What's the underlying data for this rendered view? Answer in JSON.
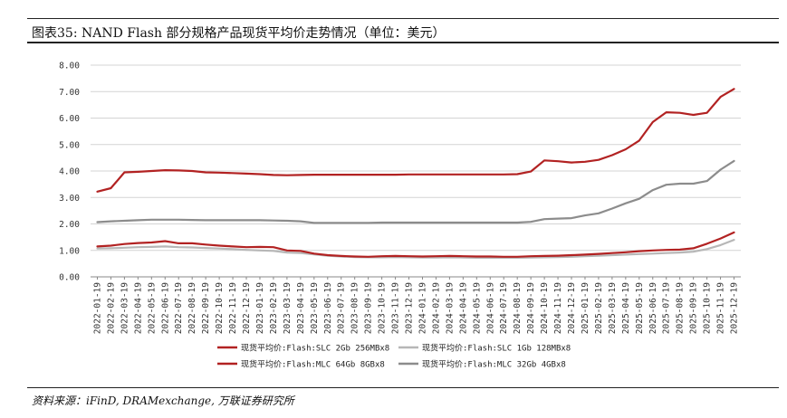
{
  "figure": {
    "title": "图表35: NAND Flash 部分规格产品现货平均价走势情况（单位：美元）",
    "source": "资料来源：iFinD, DRAMexchange, 万联证券研究所"
  },
  "chart_data": {
    "type": "line",
    "title": "",
    "xlabel": "",
    "ylabel": "",
    "ylim": [
      0,
      8
    ],
    "yticks": [
      "0.00",
      "1.00",
      "2.00",
      "3.00",
      "4.00",
      "5.00",
      "6.00",
      "7.00",
      "8.00"
    ],
    "grid": true,
    "legend_position": "bottom",
    "x": [
      "2022-01-19",
      "2022-02-19",
      "2022-03-19",
      "2022-04-19",
      "2022-05-19",
      "2022-06-19",
      "2022-07-19",
      "2022-08-19",
      "2022-09-19",
      "2022-10-19",
      "2022-11-19",
      "2022-12-19",
      "2023-01-19",
      "2023-02-19",
      "2023-03-19",
      "2023-04-19",
      "2023-05-19",
      "2023-06-19",
      "2023-07-19",
      "2023-08-19",
      "2023-09-19",
      "2023-10-19",
      "2023-11-19",
      "2023-12-19",
      "2024-01-19",
      "2024-02-19",
      "2024-03-19",
      "2024-04-19",
      "2024-05-19",
      "2024-06-19",
      "2024-07-19",
      "2024-08-19",
      "2024-09-19",
      "2024-10-19",
      "2024-11-19",
      "2024-12-19",
      "2025-01-19",
      "2025-02-19",
      "2025-03-19",
      "2025-04-19",
      "2025-05-19",
      "2025-06-19",
      "2025-07-19",
      "2025-08-19",
      "2025-09-19",
      "2025-10-19",
      "2025-11-19",
      "2025-12-19"
    ],
    "series": [
      {
        "name": "现货平均价:Flash:SLC 2Gb 256MBx8",
        "color": "#b22222",
        "width": 2.2,
        "values": [
          1.15,
          1.18,
          1.24,
          1.28,
          1.3,
          1.35,
          1.27,
          1.27,
          1.22,
          1.18,
          1.15,
          1.12,
          1.13,
          1.12,
          1.0,
          0.98,
          0.88,
          0.82,
          0.79,
          0.77,
          0.76,
          0.78,
          0.79,
          0.78,
          0.77,
          0.78,
          0.79,
          0.78,
          0.77,
          0.77,
          0.76,
          0.76,
          0.78,
          0.79,
          0.8,
          0.82,
          0.84,
          0.87,
          0.9,
          0.93,
          0.97,
          1.0,
          1.02,
          1.03,
          1.08,
          1.25,
          1.45,
          1.68
        ]
      },
      {
        "name": "现货平均价:Flash:SLC 1Gb 128MBx8",
        "color": "#b7b7b7",
        "width": 2.2,
        "values": [
          1.07,
          1.08,
          1.1,
          1.12,
          1.13,
          1.15,
          1.12,
          1.11,
          1.09,
          1.07,
          1.05,
          1.02,
          1.0,
          0.98,
          0.92,
          0.9,
          0.85,
          0.8,
          0.77,
          0.75,
          0.74,
          0.74,
          0.75,
          0.74,
          0.73,
          0.73,
          0.74,
          0.73,
          0.72,
          0.72,
          0.72,
          0.72,
          0.73,
          0.74,
          0.75,
          0.76,
          0.78,
          0.8,
          0.82,
          0.84,
          0.86,
          0.88,
          0.9,
          0.92,
          0.95,
          1.05,
          1.2,
          1.4
        ]
      },
      {
        "name": "现货平均价:Flash:MLC 64Gb 8GBx8",
        "color": "#b22222",
        "width": 2.2,
        "values": [
          3.22,
          3.35,
          3.95,
          3.97,
          4.0,
          4.03,
          4.02,
          4.0,
          3.95,
          3.94,
          3.92,
          3.9,
          3.88,
          3.85,
          3.84,
          3.85,
          3.86,
          3.86,
          3.86,
          3.86,
          3.86,
          3.86,
          3.86,
          3.87,
          3.87,
          3.87,
          3.87,
          3.87,
          3.87,
          3.87,
          3.87,
          3.88,
          3.98,
          4.4,
          4.37,
          4.32,
          4.35,
          4.42,
          4.6,
          4.82,
          5.15,
          5.85,
          6.22,
          6.2,
          6.12,
          6.2,
          6.8,
          7.1
        ]
      },
      {
        "name": "现货平均价:Flash:MLC 32Gb 4GBx8",
        "color": "#8c8c8c",
        "width": 2.2,
        "values": [
          2.07,
          2.1,
          2.12,
          2.14,
          2.16,
          2.16,
          2.16,
          2.15,
          2.14,
          2.14,
          2.14,
          2.14,
          2.14,
          2.13,
          2.12,
          2.1,
          2.04,
          2.04,
          2.04,
          2.04,
          2.04,
          2.05,
          2.05,
          2.05,
          2.05,
          2.05,
          2.05,
          2.05,
          2.05,
          2.05,
          2.05,
          2.05,
          2.08,
          2.18,
          2.2,
          2.22,
          2.32,
          2.4,
          2.58,
          2.78,
          2.95,
          3.28,
          3.48,
          3.52,
          3.52,
          3.62,
          4.05,
          4.38
        ]
      }
    ],
    "legend_order": [
      0,
      1,
      2,
      3
    ]
  }
}
